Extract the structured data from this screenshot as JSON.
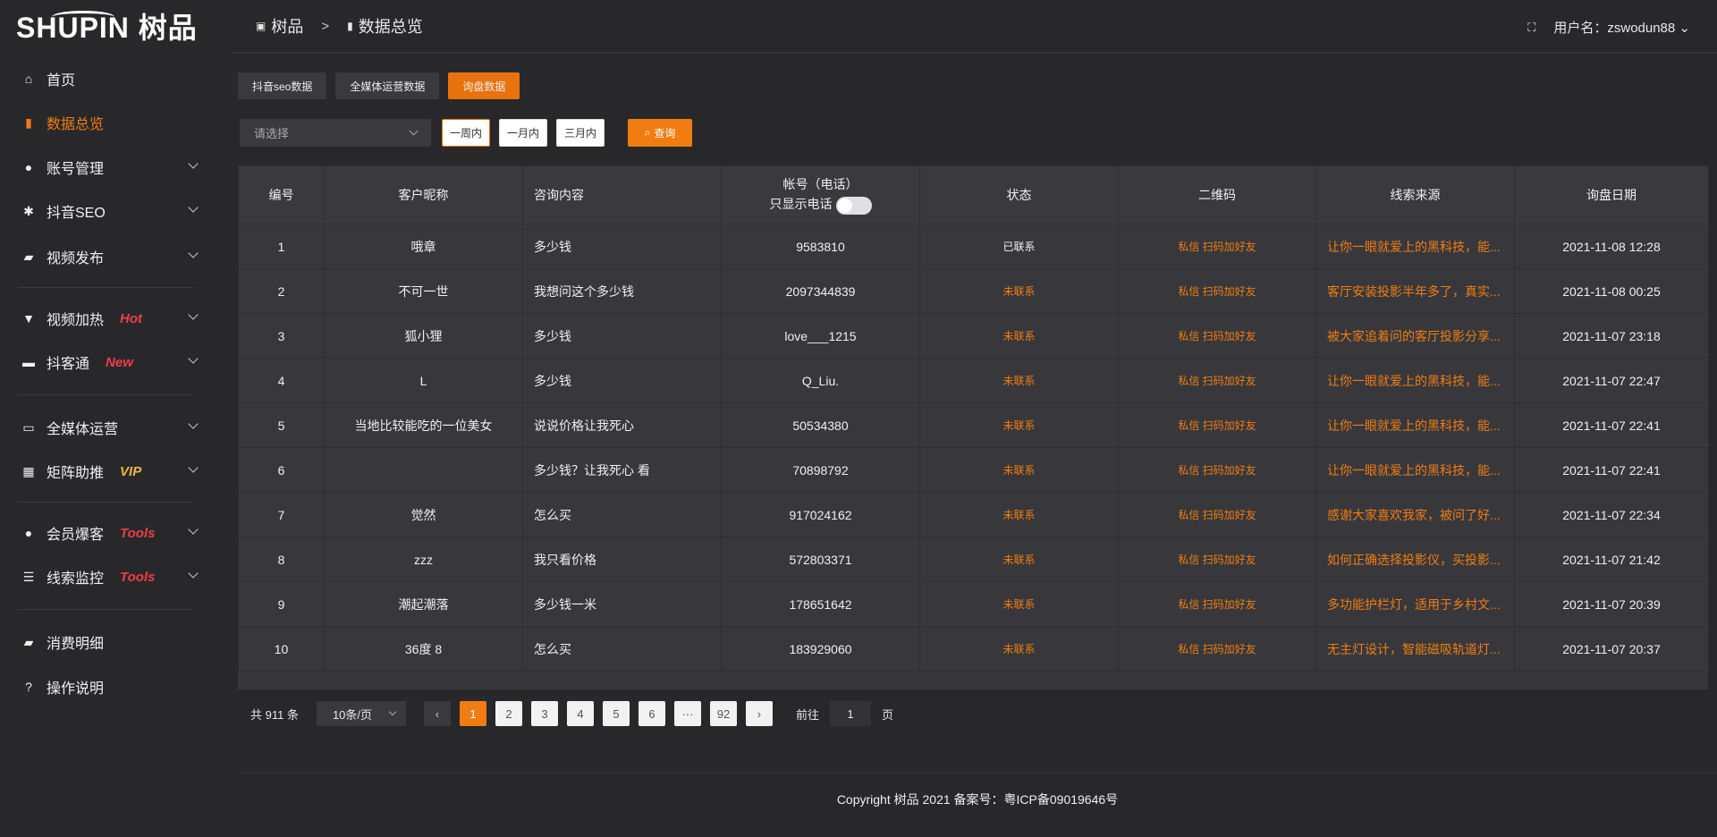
{
  "brand": {
    "logo_text": "SHUPIN 树品"
  },
  "sidebar": {
    "items": [
      {
        "label": "首页",
        "icon": "home-icon",
        "badge": "",
        "chevron": false,
        "active": false
      },
      {
        "label": "数据总览",
        "icon": "bar-chart-icon",
        "badge": "",
        "chevron": false,
        "active": true
      },
      {
        "label": "账号管理",
        "icon": "user-icon",
        "badge": "",
        "chevron": true
      },
      {
        "label": "抖音SEO",
        "icon": "gear-icon",
        "badge": "",
        "chevron": true
      },
      {
        "label": "视频发布",
        "icon": "video-icon",
        "badge": "",
        "chevron": true
      },
      {
        "label": "视频加热",
        "icon": "flame-icon",
        "badge": "Hot",
        "badge_color": "#f03c4a",
        "chevron": true
      },
      {
        "label": "抖客通",
        "icon": "chat-icon",
        "badge": "New",
        "badge_color": "#f03c4a",
        "chevron": true
      },
      {
        "label": "全媒体运营",
        "icon": "monitor-icon",
        "badge": "",
        "chevron": true
      },
      {
        "label": "矩阵助推",
        "icon": "grid-icon",
        "badge": "VIP",
        "badge_color": "#f3b43c",
        "chevron": true
      },
      {
        "label": "会员爆客",
        "icon": "member-icon",
        "badge": "Tools",
        "badge_color": "#f03c4a",
        "chevron": true
      },
      {
        "label": "线索监控",
        "icon": "sliders-icon",
        "badge": "Tools",
        "badge_color": "#f03c4a",
        "chevron": true
      },
      {
        "label": "消费明细",
        "icon": "wallet-icon",
        "badge": "",
        "chevron": false
      },
      {
        "label": "操作说明",
        "icon": "help-icon",
        "badge": "",
        "chevron": false
      }
    ]
  },
  "header": {
    "breadcrumb": [
      "树品",
      "数据总览"
    ],
    "breadcrumb_sep": ">",
    "user_label": "用户名：zswodun88"
  },
  "tabs": [
    {
      "label": "抖音seo数据"
    },
    {
      "label": "全媒体运营数据"
    },
    {
      "label": "询盘数据",
      "active": true
    }
  ],
  "filters": {
    "select_placeholder": "请选择",
    "ranges": [
      "一周内",
      "一月内",
      "三月内"
    ],
    "selected_range": "一周内",
    "query_label": "查询"
  },
  "table": {
    "columns": [
      "编号",
      "客户昵称",
      "咨询内容",
      "帐号（电话）",
      "状态",
      "二维码",
      "线索来源",
      "询盘日期"
    ],
    "phone_toggle_label": "只显示电话",
    "rows": [
      [
        "1",
        "哦章",
        "多少钱",
        "9583810",
        "已联系",
        "私信 扫码加好友",
        "让你一眼就爱上的黑科技，能...",
        "2021-11-08 12:28"
      ],
      [
        "2",
        "不可一世",
        "我想问这个多少钱",
        "2097344839",
        "未联系",
        "私信 扫码加好友",
        "客厅安装投影半年多了，真实...",
        "2021-11-08 00:25"
      ],
      [
        "3",
        "狐小狸",
        "多少钱",
        "love___1215",
        "未联系",
        "私信 扫码加好友",
        "被大家追着问的客厅投影分享...",
        "2021-11-07 23:18"
      ],
      [
        "4",
        "L",
        "多少钱",
        "Q_Liu.",
        "未联系",
        "私信 扫码加好友",
        "让你一眼就爱上的黑科技，能...",
        "2021-11-07 22:47"
      ],
      [
        "5",
        "当地比较能吃的一位美女",
        "说说价格让我死心",
        "50534380",
        "未联系",
        "私信 扫码加好友",
        "让你一眼就爱上的黑科技，能...",
        "2021-11-07 22:41"
      ],
      [
        "6",
        "",
        "多少钱？让我死心 看",
        "70898792",
        "未联系",
        "私信 扫码加好友",
        "让你一眼就爱上的黑科技，能...",
        "2021-11-07 22:41"
      ],
      [
        "7",
        "觉然",
        "怎么买",
        "917024162",
        "未联系",
        "私信 扫码加好友",
        "感谢大家喜欢我家，被问了好...",
        "2021-11-07 22:34"
      ],
      [
        "8",
        "zzz",
        "我只看价格",
        "572803371",
        "未联系",
        "私信 扫码加好友",
        "如何正确选择投影仪，买投影...",
        "2021-11-07 21:42"
      ],
      [
        "9",
        "潮起潮落",
        "多少钱一米",
        "178651642",
        "未联系",
        "私信 扫码加好友",
        "多功能护栏灯，适用于乡村文...",
        "2021-11-07 20:39"
      ],
      [
        "10",
        "36度 8",
        "怎么买",
        "183929060",
        "未联系",
        "私信 扫码加好友",
        "无主灯设计，智能磁吸轨道灯...",
        "2021-11-07 20:37"
      ]
    ]
  },
  "pagination": {
    "total": "共 911 条",
    "page_size": "10条/页",
    "pages": [
      "1",
      "2",
      "3",
      "4",
      "5",
      "6",
      "···",
      "92"
    ],
    "current": "1",
    "goto_label": "前往",
    "goto_value": "1",
    "page_suffix": "页"
  },
  "footer": {
    "copyright": "Copyright 树品 2021 备案号：粤ICP备09019646号"
  },
  "colors": {
    "accent": "#f07c12",
    "background": "#28282b",
    "panel": "#37373b"
  }
}
